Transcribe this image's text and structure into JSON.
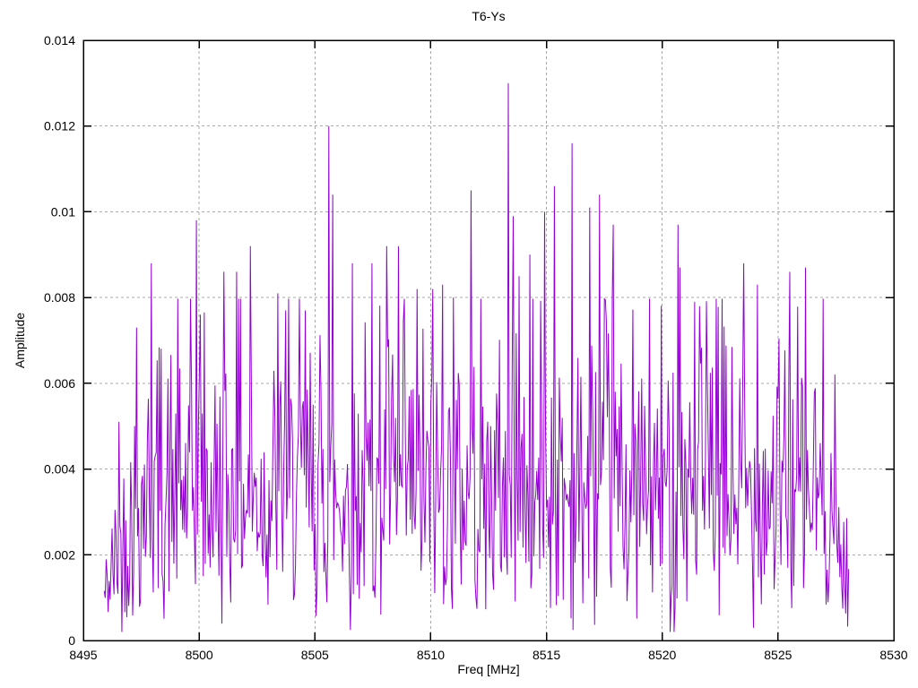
{
  "chart_data": {
    "type": "line",
    "title": "T6-Ys",
    "xlabel": "Freq [MHz]",
    "ylabel": "Amplitude",
    "xlim": [
      8495,
      8530
    ],
    "ylim": [
      0,
      0.014
    ],
    "grid": true,
    "legend": "none",
    "x_ticks": {
      "values": [
        8495,
        8500,
        8505,
        8510,
        8515,
        8520,
        8525,
        8530
      ],
      "labels": [
        "8495",
        "8500",
        "8505",
        "8510",
        "8515",
        "8520",
        "8525",
        "8530"
      ]
    },
    "y_ticks": {
      "values": [
        0,
        0.002,
        0.004,
        0.006,
        0.008,
        0.01,
        0.012,
        0.014
      ],
      "labels": [
        "0",
        "0.002",
        "0.004",
        "0.006",
        "0.008",
        "0.01",
        "0.012",
        "0.014"
      ]
    },
    "colors": {
      "line": "#9400d3",
      "grid": "#a8a8a8",
      "axis": "#000000",
      "background": "#ffffff",
      "text": "#000000"
    },
    "series": [
      {
        "name": "T6-Ys",
        "style": "lines",
        "freq_start": 8495.9,
        "freq_end": 8528.05,
        "n_points": 760,
        "noise_model": {
          "distribution": "rayleigh",
          "sigma": 0.00285,
          "baseline_cap": 0.008,
          "floor": 0.0002,
          "edge_taper_left_mhz": 1.5,
          "edge_taper_right_mhz": 0.9,
          "seed": 42
        },
        "peaks": [
          [
            8496.55,
            0.0051
          ],
          [
            8497.3,
            0.0073
          ],
          [
            8497.95,
            0.0088
          ],
          [
            8499.9,
            0.0098
          ],
          [
            8500.05,
            0.0076
          ],
          [
            8501.05,
            0.0086
          ],
          [
            8501.6,
            0.0086
          ],
          [
            8502.2,
            0.0092
          ],
          [
            8503.4,
            0.0081
          ],
          [
            8503.75,
            0.0077
          ],
          [
            8504.6,
            0.0077
          ],
          [
            8505.62,
            0.012
          ],
          [
            8505.75,
            0.0104
          ],
          [
            8506.6,
            0.0088
          ],
          [
            8507.45,
            0.0088
          ],
          [
            8508.1,
            0.0092
          ],
          [
            8508.6,
            0.0092
          ],
          [
            8509.4,
            0.0082
          ],
          [
            8510.1,
            0.0082
          ],
          [
            8510.5,
            0.0083
          ],
          [
            8511.0,
            0.008
          ],
          [
            8511.75,
            0.0105
          ],
          [
            8513.37,
            0.013
          ],
          [
            8513.55,
            0.0099
          ],
          [
            8513.8,
            0.0085
          ],
          [
            8514.3,
            0.009
          ],
          [
            8514.9,
            0.01
          ],
          [
            8515.35,
            0.0106
          ],
          [
            8516.1,
            0.0116
          ],
          [
            8516.85,
            0.0101
          ],
          [
            8517.3,
            0.0104
          ],
          [
            8517.9,
            0.0097
          ],
          [
            8520.68,
            0.0097
          ],
          [
            8520.75,
            0.0087
          ],
          [
            8521.4,
            0.0079
          ],
          [
            8521.6,
            0.0078
          ],
          [
            8523.5,
            0.0088
          ],
          [
            8524.1,
            0.0083
          ],
          [
            8525.5,
            0.0086
          ],
          [
            8526.2,
            0.0087
          ]
        ]
      }
    ]
  }
}
